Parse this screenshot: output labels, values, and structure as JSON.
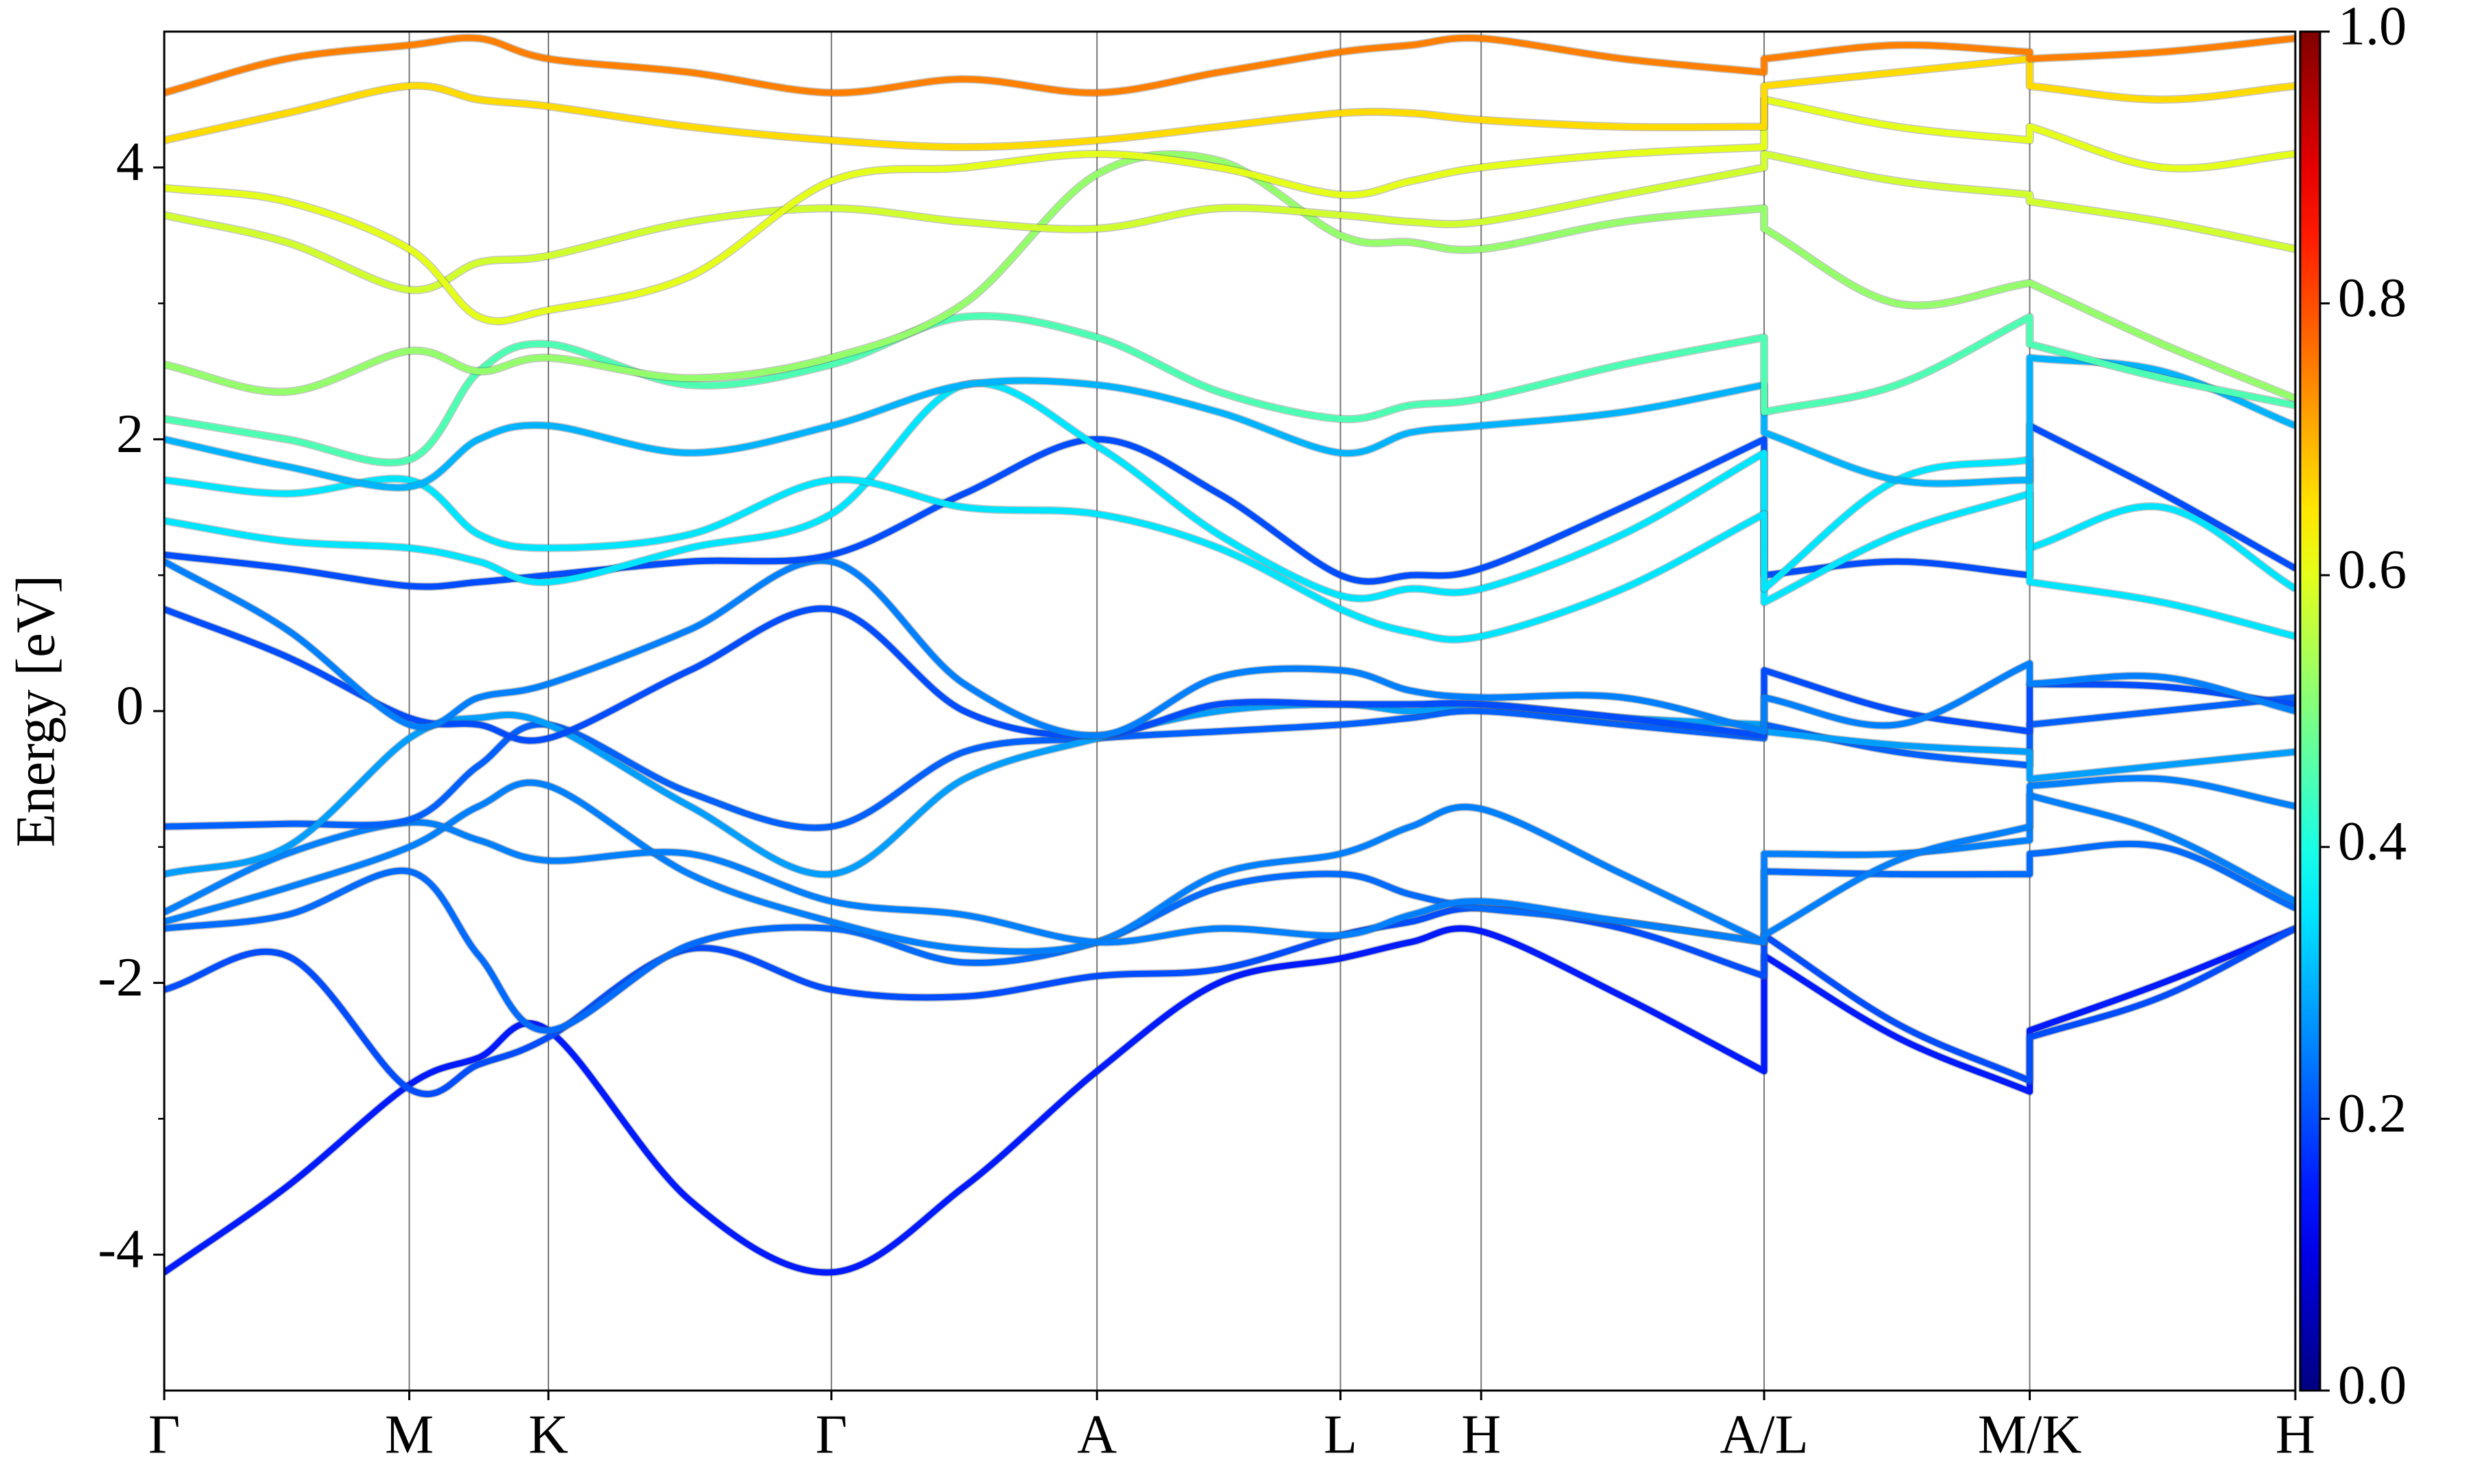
{
  "chart_data": {
    "type": "bands",
    "y_label": "Energy [eV]",
    "ylim": [
      -5,
      5
    ],
    "yticks": [
      -4,
      -2,
      0,
      2,
      4
    ],
    "yminorticks": [
      -3,
      -1,
      1,
      3
    ],
    "xlim": [
      0,
      13.48
    ],
    "xticks": [
      {
        "value": 0,
        "label": "Γ"
      },
      {
        "value": 1.55,
        "label": "M"
      },
      {
        "value": 2.43,
        "label": "K"
      },
      {
        "value": 4.22,
        "label": "Γ"
      },
      {
        "value": 5.9,
        "label": "A"
      },
      {
        "value": 7.44,
        "label": "L"
      },
      {
        "value": 8.33,
        "label": "H"
      },
      {
        "value": 10.12,
        "label": "A/L"
      },
      {
        "value": 11.8,
        "label": "M/K"
      },
      {
        "value": 13.48,
        "label": "H"
      }
    ],
    "grid": true,
    "colormap": "jet",
    "colorbar": {
      "lim": [
        0,
        1
      ],
      "ticks": [
        {
          "value": 0,
          "label": "0.0"
        },
        {
          "value": 0.2,
          "label": "0.2"
        },
        {
          "value": 0.4,
          "label": "0.4"
        },
        {
          "value": 0.6,
          "label": "0.6"
        },
        {
          "value": 0.8,
          "label": "0.8"
        },
        {
          "value": 1,
          "label": "1.0"
        }
      ]
    },
    "x": [
      0,
      0.775,
      1.55,
      1.99,
      2.43,
      3.325,
      4.22,
      5.06,
      5.9,
      6.67,
      7.44,
      7.885,
      8.33,
      9.225,
      10.12,
      10.12,
      10.96,
      11.8,
      11.8,
      12.64,
      13.48
    ],
    "series": [
      {
        "weight": 0.15,
        "values": [
          -4.13,
          -3.5,
          -2.75,
          -2.55,
          -2.35,
          -3.6,
          -4.13,
          -3.5,
          -2.65,
          -2.0,
          -1.82,
          -1.7,
          -1.62,
          -2.1,
          -2.65,
          -1.8,
          -2.4,
          -2.8,
          -2.35,
          -2.0,
          -1.6
        ]
      },
      {
        "weight": 0.2,
        "values": [
          -2.05,
          -1.8,
          -2.78,
          -2.6,
          -2.4,
          -1.75,
          -2.05,
          -2.1,
          -1.95,
          -1.9,
          -1.65,
          -1.55,
          -1.45,
          -1.6,
          -1.95,
          -1.65,
          -2.3,
          -2.72,
          -2.4,
          -2.1,
          -1.6
        ]
      },
      {
        "weight": 0.23,
        "values": [
          -1.6,
          -1.5,
          -1.18,
          -1.8,
          -2.35,
          -1.72,
          -1.6,
          -1.85,
          -1.7,
          -1.3,
          -1.2,
          -1.35,
          -1.45,
          -1.55,
          -1.7,
          -1.18,
          -1.2,
          -1.2,
          -1.05,
          -1.0,
          -1.45
        ]
      },
      {
        "weight": 0.25,
        "values": [
          -1.55,
          -1.3,
          -1.0,
          -0.7,
          -0.55,
          -1.2,
          -1.55,
          -1.75,
          -1.7,
          -1.2,
          -1.05,
          -0.85,
          -0.72,
          -1.2,
          -1.7,
          -1.05,
          -1.05,
          -0.95,
          -0.62,
          -0.9,
          -1.4
        ]
      },
      {
        "weight": 0.25,
        "values": [
          -1.48,
          -1.05,
          -0.82,
          -0.95,
          -1.1,
          -1.05,
          -1.4,
          -1.5,
          -1.7,
          -1.6,
          -1.65,
          -1.5,
          -1.4,
          -1.55,
          -1.7,
          -1.65,
          -1.1,
          -0.85,
          -0.55,
          -0.5,
          -0.7
        ]
      },
      {
        "weight": 0.22,
        "values": [
          -0.85,
          -0.83,
          -0.8,
          -0.4,
          -0.1,
          -0.6,
          -0.85,
          -0.3,
          -0.2,
          -0.15,
          -0.1,
          -0.05,
          0.0,
          -0.1,
          -0.2,
          -0.1,
          -0.3,
          -0.4,
          -0.1,
          0.0,
          0.1
        ]
      },
      {
        "weight": 0.28,
        "values": [
          -1.2,
          -1.0,
          -0.2,
          -0.05,
          -0.1,
          -0.7,
          -1.2,
          -0.5,
          -0.2,
          0.0,
          0.05,
          0.0,
          0.05,
          -0.05,
          -0.1,
          -0.15,
          -0.25,
          -0.3,
          -0.5,
          -0.4,
          -0.3
        ]
      },
      {
        "weight": 0.2,
        "values": [
          0.75,
          0.4,
          -0.05,
          -0.1,
          -0.2,
          0.3,
          0.75,
          0.0,
          -0.18,
          0.05,
          0.05,
          0.05,
          0.05,
          -0.05,
          -0.18,
          0.3,
          0.0,
          -0.15,
          0.2,
          0.18,
          0.05
        ]
      },
      {
        "weight": 0.25,
        "values": [
          1.1,
          0.6,
          -0.1,
          0.1,
          0.2,
          0.6,
          1.1,
          0.2,
          -0.18,
          0.25,
          0.3,
          0.15,
          0.1,
          0.1,
          -0.15,
          0.1,
          -0.1,
          0.35,
          0.2,
          0.25,
          0.0
        ]
      },
      {
        "weight": 0.2,
        "values": [
          1.15,
          1.05,
          0.92,
          0.95,
          1.0,
          1.1,
          1.15,
          1.6,
          2.0,
          1.6,
          1.0,
          1.0,
          1.05,
          1.5,
          2.0,
          1.0,
          1.1,
          1.0,
          2.1,
          1.6,
          1.05
        ]
      },
      {
        "weight": 0.35,
        "values": [
          1.4,
          1.25,
          1.2,
          1.1,
          0.95,
          1.2,
          1.45,
          2.4,
          1.95,
          1.3,
          0.85,
          0.9,
          0.9,
          1.3,
          1.9,
          0.8,
          1.3,
          1.6,
          1.2,
          1.5,
          0.9
        ]
      },
      {
        "weight": 0.35,
        "values": [
          1.7,
          1.6,
          1.7,
          1.3,
          1.2,
          1.3,
          1.7,
          1.5,
          1.45,
          1.2,
          0.75,
          0.58,
          0.55,
          0.9,
          1.45,
          0.9,
          1.7,
          1.85,
          0.95,
          0.8,
          0.55
        ]
      },
      {
        "weight": 0.3,
        "values": [
          2.0,
          1.8,
          1.65,
          2.0,
          2.1,
          1.9,
          2.1,
          2.4,
          2.4,
          2.2,
          1.9,
          2.05,
          2.1,
          2.2,
          2.4,
          2.05,
          1.7,
          1.7,
          2.6,
          2.5,
          2.1
        ]
      },
      {
        "weight": 0.45,
        "values": [
          2.15,
          2.0,
          1.85,
          2.5,
          2.7,
          2.4,
          2.55,
          2.9,
          2.75,
          2.35,
          2.15,
          2.25,
          2.3,
          2.55,
          2.75,
          2.2,
          2.4,
          2.9,
          2.7,
          2.45,
          2.25
        ]
      },
      {
        "weight": 0.52,
        "values": [
          2.55,
          2.35,
          2.65,
          2.5,
          2.6,
          2.45,
          2.6,
          3.0,
          3.95,
          4.05,
          3.5,
          3.45,
          3.4,
          3.6,
          3.7,
          3.55,
          3.0,
          3.15,
          3.15,
          2.7,
          2.3
        ]
      },
      {
        "weight": 0.58,
        "values": [
          3.65,
          3.45,
          3.1,
          3.3,
          3.35,
          3.6,
          3.7,
          3.6,
          3.55,
          3.7,
          3.65,
          3.6,
          3.6,
          3.8,
          4.0,
          4.1,
          3.9,
          3.8,
          3.75,
          3.6,
          3.4
        ]
      },
      {
        "weight": 0.6,
        "values": [
          3.85,
          3.75,
          3.4,
          2.9,
          2.95,
          3.2,
          3.9,
          4.0,
          4.1,
          4.0,
          3.8,
          3.9,
          4.0,
          4.1,
          4.15,
          4.5,
          4.3,
          4.2,
          4.3,
          4.0,
          4.1
        ]
      },
      {
        "weight": 0.66,
        "values": [
          4.2,
          4.4,
          4.6,
          4.5,
          4.45,
          4.3,
          4.2,
          4.15,
          4.2,
          4.3,
          4.4,
          4.4,
          4.35,
          4.3,
          4.3,
          4.6,
          4.7,
          4.8,
          4.6,
          4.5,
          4.6
        ]
      },
      {
        "weight": 0.75,
        "values": [
          4.55,
          4.8,
          4.9,
          4.95,
          4.8,
          4.7,
          4.55,
          4.65,
          4.55,
          4.7,
          4.85,
          4.9,
          4.95,
          4.8,
          4.7,
          4.8,
          4.9,
          4.85,
          4.8,
          4.85,
          4.95
        ]
      }
    ]
  }
}
